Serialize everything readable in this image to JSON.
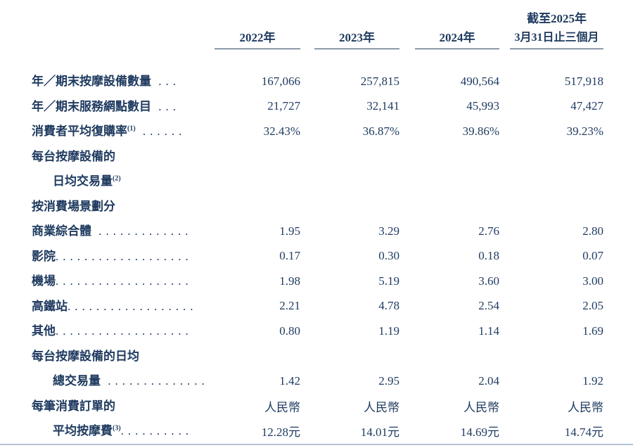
{
  "page": {
    "background": "#ffffff",
    "text_color": "#1e3a5f",
    "rule_color": "#2b4562",
    "bottom_rule_color": "#b6c3d6"
  },
  "table": {
    "header": {
      "last_col_line1": "截至2025年",
      "columns": [
        {
          "label": "2022年"
        },
        {
          "label": "2023年"
        },
        {
          "label": "2024年"
        },
        {
          "label": "3月31日止三個月"
        }
      ]
    },
    "rows": [
      {
        "label": "年／期末按摩設備數量",
        "sup": "",
        "dots": " ...",
        "indent": 0,
        "values": [
          "167,066",
          "257,815",
          "490,564",
          "517,918"
        ]
      },
      {
        "label": "年／期末服務網點數目",
        "sup": "",
        "dots": " ...",
        "indent": 0,
        "values": [
          "21,727",
          "32,141",
          "45,993",
          "47,427"
        ]
      },
      {
        "label": "消費者平均復購率",
        "sup": "(1)",
        "dots": " ......",
        "indent": 0,
        "values": [
          "32.43%",
          "36.87%",
          "39.86%",
          "39.23%"
        ]
      },
      {
        "label": "每台按摩設備的",
        "sup": "",
        "dots": "",
        "indent": 0,
        "values": [
          "",
          "",
          "",
          ""
        ]
      },
      {
        "label": "日均交易量",
        "sup": "(2)",
        "dots": "",
        "indent": 1,
        "values": [
          "",
          "",
          "",
          ""
        ]
      },
      {
        "label": "按消費場景劃分",
        "sup": "",
        "dots": "",
        "indent": 0,
        "values": [
          "",
          "",
          "",
          ""
        ]
      },
      {
        "label": "商業綜合體",
        "sup": "",
        "dots": " .............",
        "indent": 0,
        "values": [
          "1.95",
          "3.29",
          "2.76",
          "2.80"
        ]
      },
      {
        "label": "影院",
        "sup": "",
        "dots": "...................",
        "indent": 0,
        "values": [
          "0.17",
          "0.30",
          "0.18",
          "0.07"
        ]
      },
      {
        "label": "機場",
        "sup": "",
        "dots": "...................",
        "indent": 0,
        "values": [
          "1.98",
          "5.19",
          "3.60",
          "3.00"
        ]
      },
      {
        "label": "高鐵站",
        "sup": "",
        "dots": "..................",
        "indent": 0,
        "values": [
          "2.21",
          "4.78",
          "2.54",
          "2.05"
        ]
      },
      {
        "label": "其他",
        "sup": "",
        "dots": "...................",
        "indent": 0,
        "values": [
          "0.80",
          "1.19",
          "1.14",
          "1.69"
        ]
      },
      {
        "label": "每台按摩設備的日均",
        "sup": "",
        "dots": "",
        "indent": 0,
        "values": [
          "",
          "",
          "",
          ""
        ]
      },
      {
        "label": "總交易量",
        "sup": "",
        "dots": " ..............",
        "indent": 1,
        "values": [
          "1.42",
          "2.95",
          "2.04",
          "1.92"
        ]
      },
      {
        "label": "每筆消費訂單的",
        "sup": "",
        "dots": "",
        "indent": 0,
        "values": [
          "人民幣",
          "人民幣",
          "人民幣",
          "人民幣"
        ]
      },
      {
        "label": "平均按摩費",
        "sup": "(3)",
        "dots": "..........",
        "indent": 1,
        "values": [
          "12.28元",
          "14.01元",
          "14.69元",
          "14.74元"
        ]
      }
    ]
  }
}
